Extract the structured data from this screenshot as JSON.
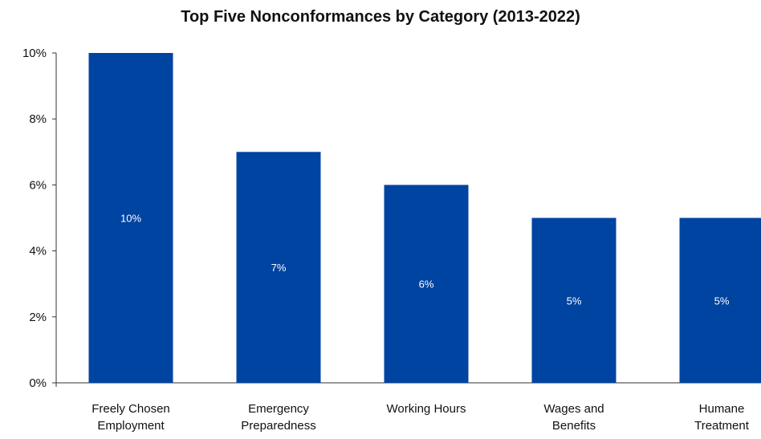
{
  "chart_data": {
    "type": "bar",
    "title": "Top Five Nonconformances by Category (2013-2022)",
    "categories": [
      [
        "Freely Chosen",
        "Employment"
      ],
      [
        "Emergency",
        "Preparedness"
      ],
      [
        "Working Hours"
      ],
      [
        "Wages and",
        "Benefits"
      ],
      [
        "Humane",
        "Treatment"
      ]
    ],
    "values": [
      10,
      7,
      6,
      5,
      5
    ],
    "data_labels": [
      "10%",
      "7%",
      "6%",
      "5%",
      "5%"
    ],
    "ylim": [
      0,
      10
    ],
    "yticks": [
      0,
      2,
      4,
      6,
      8,
      10
    ],
    "ytick_labels": [
      "0%",
      "2%",
      "4%",
      "6%",
      "8%",
      "10%"
    ],
    "xlabel": "",
    "ylabel": "",
    "grid": false,
    "bar_color": "#0044a1",
    "axis_color": "#333333"
  }
}
